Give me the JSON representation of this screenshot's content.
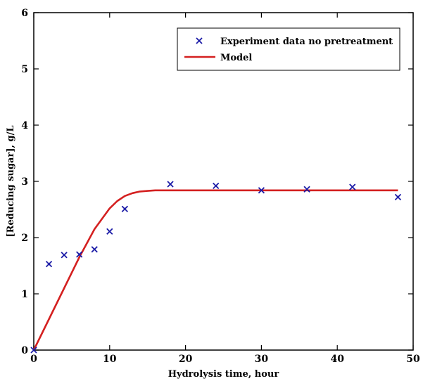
{
  "chart_data": {
    "type": "line",
    "title": "",
    "xlabel": "Hydrolysis time, hour",
    "ylabel": "[Reducing sugar], g/L",
    "xlim": [
      0,
      50
    ],
    "ylim": [
      0,
      6
    ],
    "xticks": [
      0,
      10,
      20,
      30,
      40,
      50
    ],
    "yticks": [
      0,
      1,
      2,
      3,
      4,
      5,
      6
    ],
    "grid": false,
    "legend_position": "top-right",
    "series": [
      {
        "name": "Experiment data no pretreatment",
        "kind": "scatter",
        "marker": "x",
        "color": "#1a1aa6",
        "x": [
          0,
          2,
          4,
          6,
          8,
          10,
          12,
          18,
          24,
          30,
          36,
          42,
          48
        ],
        "y": [
          0.0,
          1.53,
          1.69,
          1.7,
          1.79,
          2.11,
          2.51,
          2.95,
          2.92,
          2.84,
          2.86,
          2.9,
          2.72
        ]
      },
      {
        "name": "Model",
        "kind": "line",
        "color": "#d42020",
        "x": [
          0,
          2,
          4,
          6,
          8,
          10,
          11,
          12,
          13,
          14,
          15,
          16,
          18,
          20,
          24,
          30,
          36,
          42,
          48
        ],
        "y": [
          0.0,
          0.55,
          1.1,
          1.65,
          2.15,
          2.52,
          2.65,
          2.74,
          2.79,
          2.82,
          2.83,
          2.84,
          2.84,
          2.84,
          2.84,
          2.84,
          2.84,
          2.84,
          2.84
        ]
      }
    ]
  }
}
